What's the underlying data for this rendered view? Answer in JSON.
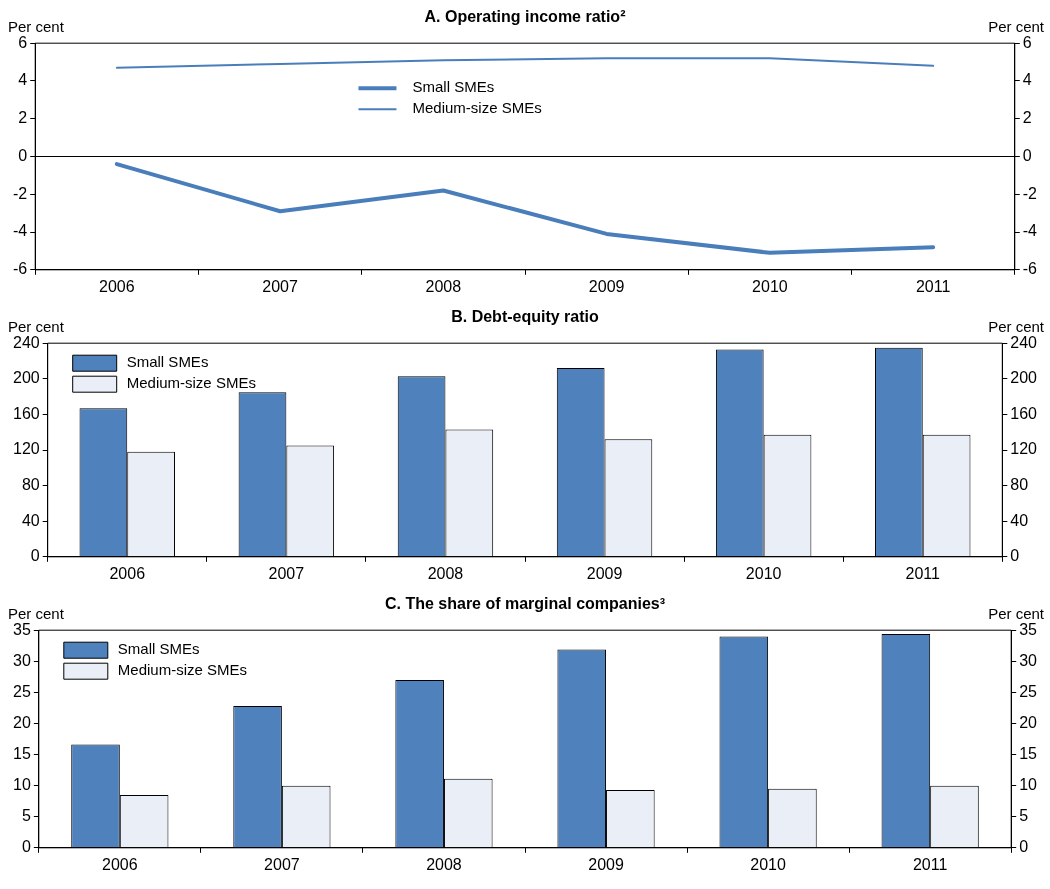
{
  "chart_data": [
    {
      "type": "line",
      "title": "A. Operating income ratio²",
      "ylabel": "Per cent",
      "y2label": "Per cent",
      "categories": [
        "2006",
        "2007",
        "2008",
        "2009",
        "2010",
        "2011"
      ],
      "series": [
        {
          "name": "Small SMEs",
          "color": "#4a7ebb",
          "values": [
            -0.4,
            -2.9,
            -1.8,
            -4.1,
            -5.1,
            -4.8
          ]
        },
        {
          "name": "Medium-size SMEs",
          "color": "#4a7ebb",
          "values": [
            4.7,
            4.9,
            5.1,
            5.2,
            5.2,
            4.8
          ]
        }
      ],
      "ylim": [
        -6,
        6
      ],
      "yticks": [
        -6,
        -4,
        -2,
        0,
        2,
        4,
        6
      ],
      "y2lim": [
        -6,
        6
      ],
      "y2ticks": [
        -6,
        -4,
        -2,
        0,
        2,
        4,
        6
      ],
      "ref_lines": [
        {
          "axis": "y",
          "value": 0,
          "color": "#000000"
        }
      ],
      "legend": "top",
      "grid": false,
      "marker": "none"
    },
    {
      "type": "bar",
      "title": "B. Debt-equity ratio",
      "ylabel": "Per cent",
      "y2label": "Per cent",
      "categories": [
        "2006",
        "2007",
        "2008",
        "2009",
        "2010",
        "2011"
      ],
      "series": [
        {
          "name": "Small SMEs",
          "color": "#4f81bd",
          "values": [
            167,
            185,
            203,
            212,
            233,
            235
          ]
        },
        {
          "name": "Medium-size SMEs",
          "color": "#eaeef7",
          "values": [
            118,
            125,
            143,
            132,
            137,
            137
          ]
        }
      ],
      "ylim": [
        0,
        240
      ],
      "yticks": [
        0,
        40,
        80,
        120,
        160,
        200,
        240
      ],
      "y2lim": [
        0,
        240
      ],
      "y2ticks": [
        0,
        40,
        80,
        120,
        160,
        200,
        240
      ],
      "legend": "top left",
      "grid": false
    },
    {
      "type": "bar",
      "title": "C. The share of marginal companies³",
      "ylabel": "Per cent",
      "y2label": "Per cent",
      "categories": [
        "2006",
        "2007",
        "2008",
        "2009",
        "2010",
        "2011"
      ],
      "series": [
        {
          "name": "Small SMEs",
          "color": "#4f81bd",
          "values": [
            16.6,
            22.8,
            27,
            31.9,
            34,
            34.4
          ]
        },
        {
          "name": "Medium-size SMEs",
          "color": "#eaeef7",
          "values": [
            8.5,
            10,
            11.1,
            9.3,
            9.5,
            10
          ]
        }
      ],
      "ylim": [
        0,
        35
      ],
      "yticks": [
        0,
        5,
        10,
        15,
        20,
        25,
        30,
        35
      ],
      "y2lim": [
        0,
        35
      ],
      "y2ticks": [
        0,
        5,
        10,
        15,
        20,
        25,
        30,
        35
      ],
      "legend": "top left",
      "grid": false
    }
  ]
}
